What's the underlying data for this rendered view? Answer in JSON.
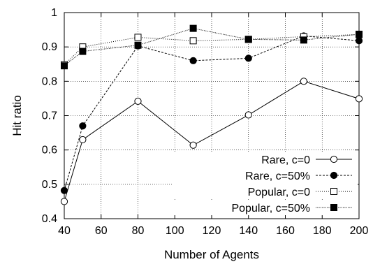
{
  "chart_data": {
    "type": "line",
    "xlabel": "Number of Agents",
    "ylabel": "Hit ratio",
    "xlim": [
      40,
      200
    ],
    "ylim": [
      0.4,
      1.0
    ],
    "xticks": [
      40,
      60,
      80,
      100,
      120,
      140,
      160,
      180,
      200
    ],
    "yticks": [
      0.4,
      0.5,
      0.6,
      0.7,
      0.8,
      0.9,
      1
    ],
    "grid": true,
    "legend_position": "bottom-right",
    "x": [
      40,
      50,
      80,
      110,
      140,
      170,
      200
    ],
    "series": [
      {
        "name": "Rare, c=0",
        "marker": "circle-open",
        "line": "solid",
        "values": [
          0.45,
          0.63,
          0.742,
          0.614,
          0.702,
          0.8,
          0.749
        ]
      },
      {
        "name": "Rare, c=50%",
        "marker": "circle-filled",
        "line": "dashed",
        "values": [
          0.482,
          0.67,
          0.903,
          0.86,
          0.867,
          0.932,
          0.918
        ]
      },
      {
        "name": "Popular, c=0",
        "marker": "square-open",
        "line": "dotted",
        "values": [
          0.848,
          0.9,
          0.928,
          0.918,
          0.922,
          0.93,
          0.936
        ]
      },
      {
        "name": "Popular, c=50%",
        "marker": "square-filled",
        "line": "dense-dotted",
        "values": [
          0.845,
          0.887,
          0.905,
          0.954,
          0.922,
          0.92,
          0.937
        ]
      }
    ]
  }
}
